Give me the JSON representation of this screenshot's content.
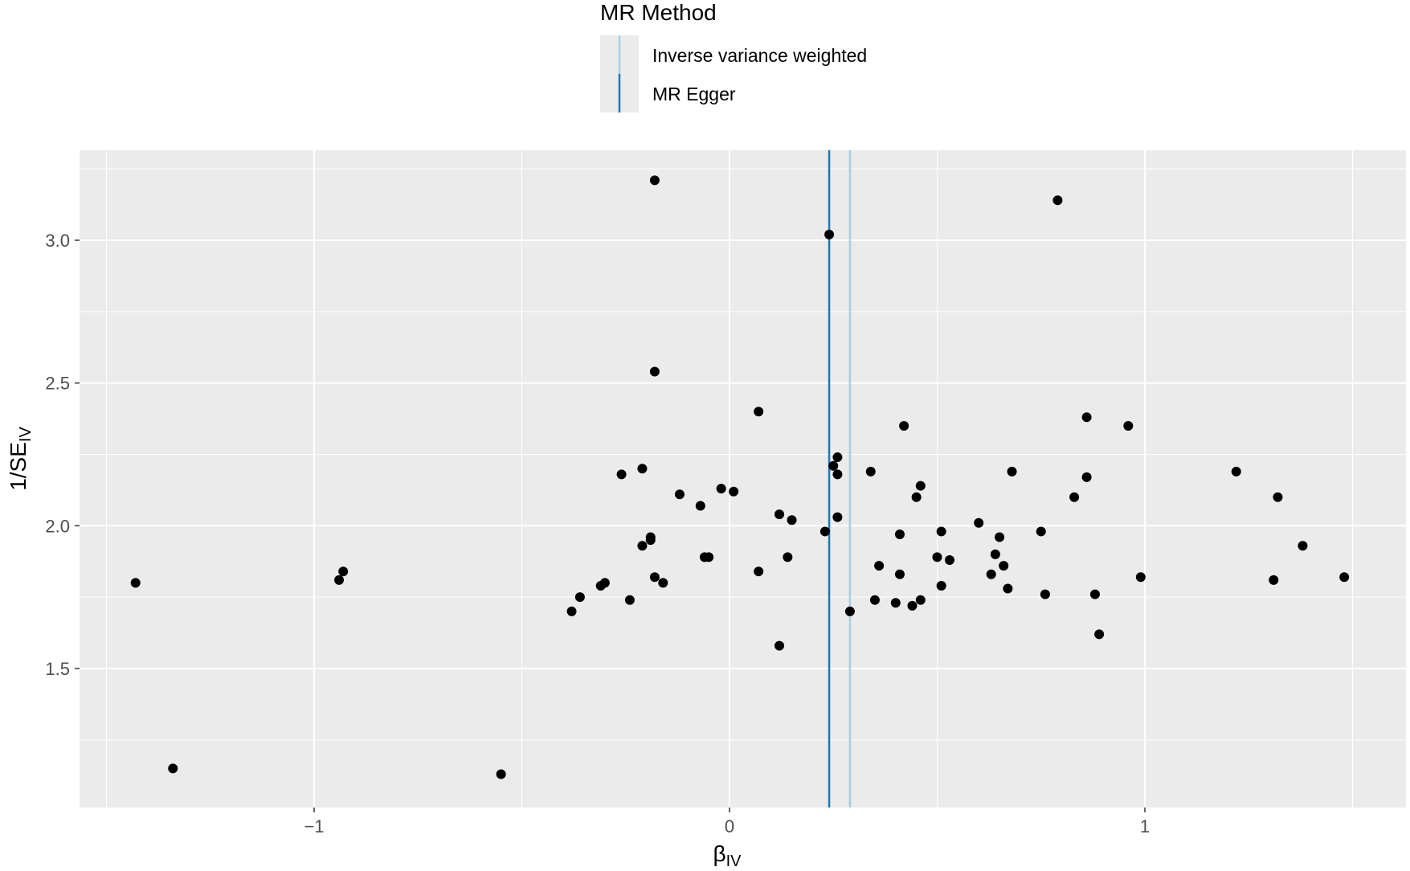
{
  "legend": {
    "title": "MR Method",
    "items": [
      {
        "label": "Inverse variance weighted",
        "color": "#a6cee3"
      },
      {
        "label": "MR Egger",
        "color": "#1f78b4"
      }
    ]
  },
  "axes": {
    "xlabel_main": "β",
    "xlabel_sub": "IV",
    "ylabel_main": "1/SE",
    "ylabel_sub": "IV"
  },
  "chart_data": {
    "type": "scatter",
    "title": "",
    "xlim": [
      -1.5,
      1.5
    ],
    "ylim": [
      1.05,
      3.25
    ],
    "x_ticks": [
      {
        "value": -1,
        "label": "−1"
      },
      {
        "value": 0,
        "label": "0"
      },
      {
        "value": 1,
        "label": "1"
      }
    ],
    "y_ticks": [
      {
        "value": 1.5,
        "label": "1.5"
      },
      {
        "value": 2.0,
        "label": "2.0"
      },
      {
        "value": 2.5,
        "label": "2.5"
      },
      {
        "value": 3.0,
        "label": "3.0"
      }
    ],
    "grid": true,
    "legend_position": "top",
    "background": "#ebebeb",
    "point_color": "#000000",
    "vlines": [
      {
        "name": "Inverse variance weighted",
        "x": 0.29,
        "color": "#a6cee3"
      },
      {
        "name": "MR Egger",
        "x": 0.24,
        "color": "#1f78b4"
      }
    ],
    "points": [
      [
        -1.43,
        1.8
      ],
      [
        -1.34,
        1.15
      ],
      [
        -0.94,
        1.81
      ],
      [
        -0.93,
        1.84
      ],
      [
        -0.55,
        1.13
      ],
      [
        -0.38,
        1.7
      ],
      [
        -0.36,
        1.75
      ],
      [
        -0.31,
        1.79
      ],
      [
        -0.3,
        1.8
      ],
      [
        -0.26,
        2.18
      ],
      [
        -0.24,
        1.74
      ],
      [
        -0.21,
        2.2
      ],
      [
        -0.21,
        1.93
      ],
      [
        -0.19,
        1.95
      ],
      [
        -0.19,
        1.96
      ],
      [
        -0.18,
        3.21
      ],
      [
        -0.18,
        2.54
      ],
      [
        -0.18,
        1.82
      ],
      [
        -0.16,
        1.8
      ],
      [
        -0.12,
        2.11
      ],
      [
        -0.07,
        2.07
      ],
      [
        -0.06,
        1.89
      ],
      [
        -0.05,
        1.89
      ],
      [
        -0.02,
        2.13
      ],
      [
        0.01,
        2.12
      ],
      [
        0.07,
        2.4
      ],
      [
        0.07,
        1.84
      ],
      [
        0.12,
        2.04
      ],
      [
        0.12,
        1.58
      ],
      [
        0.14,
        1.89
      ],
      [
        0.15,
        2.02
      ],
      [
        0.23,
        1.98
      ],
      [
        0.24,
        3.02
      ],
      [
        0.25,
        2.21
      ],
      [
        0.26,
        2.24
      ],
      [
        0.26,
        2.18
      ],
      [
        0.26,
        2.03
      ],
      [
        0.29,
        1.7
      ],
      [
        0.34,
        2.19
      ],
      [
        0.35,
        1.74
      ],
      [
        0.36,
        1.86
      ],
      [
        0.4,
        1.73
      ],
      [
        0.41,
        1.83
      ],
      [
        0.41,
        1.97
      ],
      [
        0.42,
        2.35
      ],
      [
        0.44,
        1.72
      ],
      [
        0.45,
        2.1
      ],
      [
        0.46,
        2.14
      ],
      [
        0.46,
        1.74
      ],
      [
        0.5,
        1.89
      ],
      [
        0.51,
        1.79
      ],
      [
        0.51,
        1.98
      ],
      [
        0.53,
        1.88
      ],
      [
        0.6,
        2.01
      ],
      [
        0.63,
        1.83
      ],
      [
        0.64,
        1.9
      ],
      [
        0.65,
        1.96
      ],
      [
        0.66,
        1.86
      ],
      [
        0.67,
        1.78
      ],
      [
        0.68,
        2.19
      ],
      [
        0.75,
        1.98
      ],
      [
        0.76,
        1.76
      ],
      [
        0.79,
        3.14
      ],
      [
        0.83,
        2.1
      ],
      [
        0.86,
        2.38
      ],
      [
        0.86,
        2.17
      ],
      [
        0.88,
        1.76
      ],
      [
        0.89,
        1.62
      ],
      [
        0.96,
        2.35
      ],
      [
        0.99,
        1.82
      ],
      [
        1.22,
        2.19
      ],
      [
        1.31,
        1.81
      ],
      [
        1.32,
        2.1
      ],
      [
        1.38,
        1.93
      ],
      [
        1.48,
        1.82
      ]
    ]
  }
}
